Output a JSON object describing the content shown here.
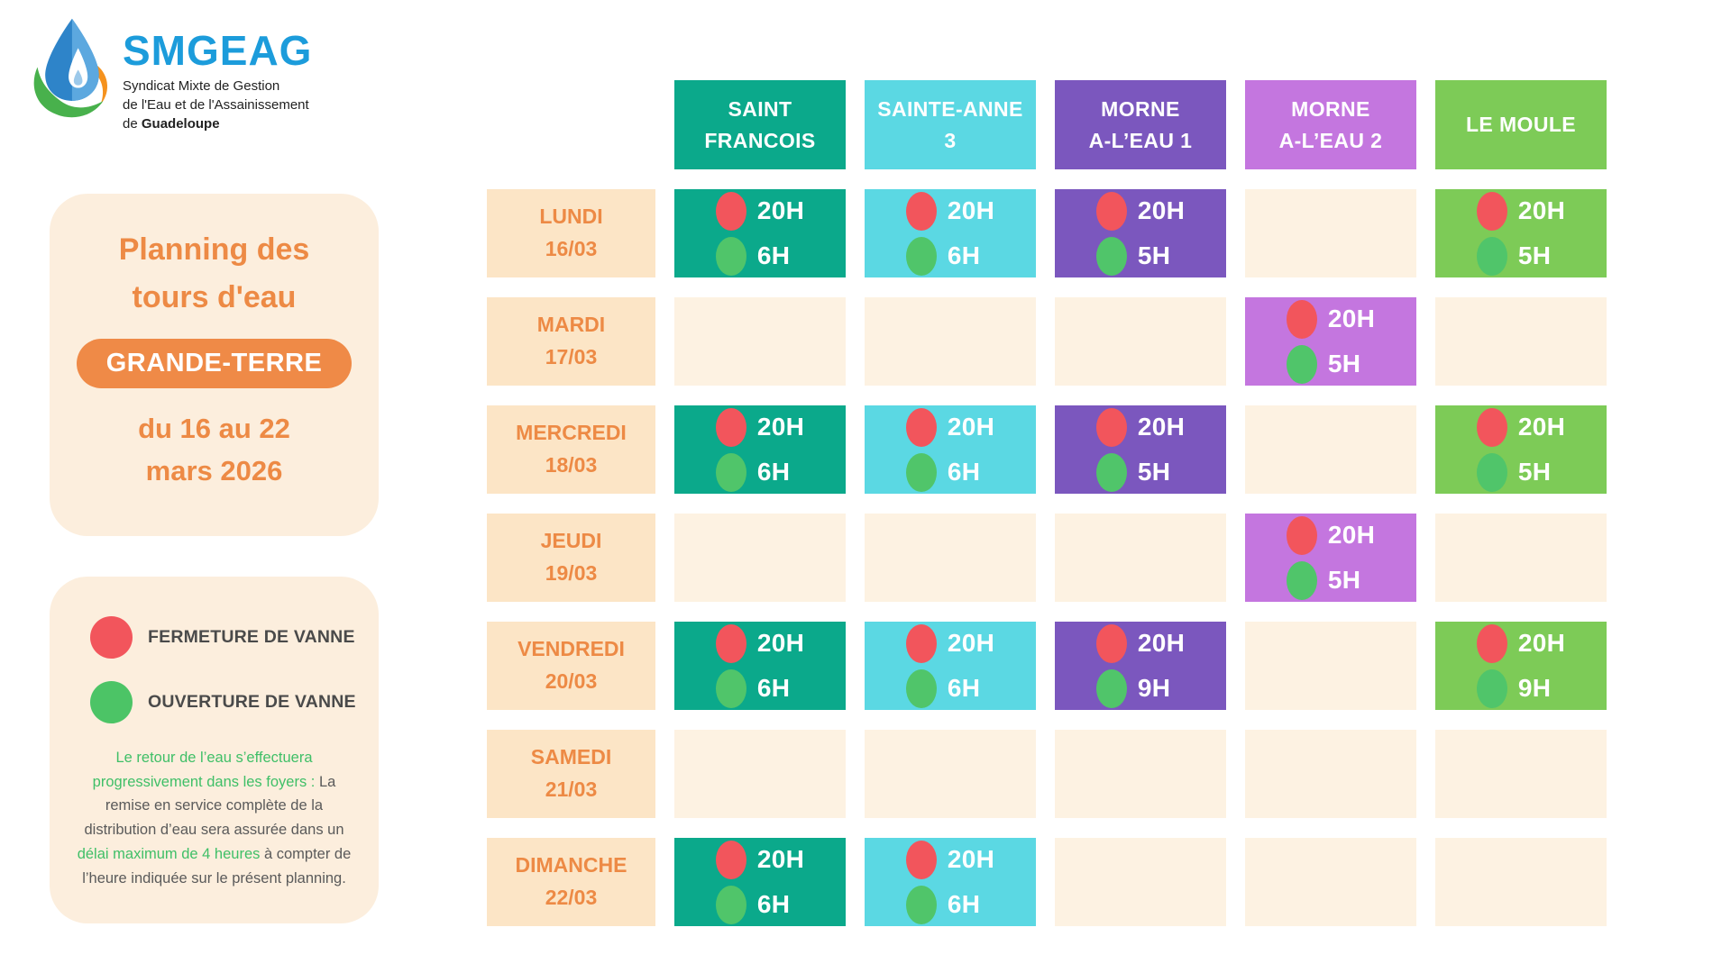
{
  "logo": {
    "brand": "SMGEAG",
    "subtitle_lines": [
      "Syndicat Mixte de Gestion",
      "de l'Eau et de l'Assainissement"
    ],
    "subtitle_line3_prefix": "de ",
    "subtitle_line3_bold": "Guadeloupe"
  },
  "title_card": {
    "title_lines": [
      "Planning des",
      "tours d'eau"
    ],
    "badge": "GRANDE-TERRE",
    "date_lines": [
      "du 16 au 22",
      "mars 2026"
    ]
  },
  "legend_card": {
    "items": [
      {
        "id": "fermeture",
        "dot_color": "#F2555C",
        "label": "FERMETURE DE VANNE"
      },
      {
        "id": "ouverture",
        "dot_color": "#4CC466",
        "label": "OUVERTURE DE VANNE"
      }
    ],
    "note_segments": [
      {
        "tone": "green",
        "text": "Le retour de l’eau s’effectuera progressivement dans les foyers :"
      },
      {
        "tone": "dark",
        "text": " La remise en service complète de la distribution d’eau sera assurée dans un "
      },
      {
        "tone": "green",
        "text": "délai maximum de 4 heures"
      },
      {
        "tone": "dark",
        "text": " à compter de l’heure indiquée sur le présent planning."
      }
    ]
  },
  "schedule": {
    "columns": [
      {
        "id": "saint-francois",
        "label_lines": [
          "SAINT",
          "FRANCOIS"
        ],
        "color": "#0BA98B"
      },
      {
        "id": "sainte-anne-3",
        "label_lines": [
          "SAINTE-ANNE",
          "3"
        ],
        "color": "#5BD8E3"
      },
      {
        "id": "morne-a-l-eau-1",
        "label_lines": [
          "MORNE",
          "A-L’EAU 1"
        ],
        "color": "#7B57BE"
      },
      {
        "id": "morne-a-l-eau-2",
        "label_lines": [
          "MORNE",
          "A-L’EAU 2"
        ],
        "color": "#C476DF"
      },
      {
        "id": "le-moule",
        "label_lines": [
          "LE MOULE"
        ],
        "color": "#7DCB57"
      }
    ],
    "days": [
      {
        "id": "lundi",
        "name": "LUNDI",
        "date": "16/03"
      },
      {
        "id": "mardi",
        "name": "MARDI",
        "date": "17/03"
      },
      {
        "id": "mercredi",
        "name": "MERCREDI",
        "date": "18/03"
      },
      {
        "id": "jeudi",
        "name": "JEUDI",
        "date": "19/03"
      },
      {
        "id": "vendredi",
        "name": "VENDREDI",
        "date": "20/03"
      },
      {
        "id": "samedi",
        "name": "SAMEDI",
        "date": "21/03"
      },
      {
        "id": "dimanche",
        "name": "DIMANCHE",
        "date": "22/03"
      }
    ],
    "cells": [
      [
        {
          "close": "20H",
          "open": "6H"
        },
        {
          "close": "20H",
          "open": "6H"
        },
        {
          "close": "20H",
          "open": "5H"
        },
        null,
        {
          "close": "20H",
          "open": "5H"
        }
      ],
      [
        null,
        null,
        null,
        {
          "close": "20H",
          "open": "5H"
        },
        null
      ],
      [
        {
          "close": "20H",
          "open": "6H"
        },
        {
          "close": "20H",
          "open": "6H"
        },
        {
          "close": "20H",
          "open": "5H"
        },
        null,
        {
          "close": "20H",
          "open": "5H"
        }
      ],
      [
        null,
        null,
        null,
        {
          "close": "20H",
          "open": "5H"
        },
        null
      ],
      [
        {
          "close": "20H",
          "open": "6H"
        },
        {
          "close": "20H",
          "open": "6H"
        },
        {
          "close": "20H",
          "open": "9H"
        },
        null,
        {
          "close": "20H",
          "open": "9H"
        }
      ],
      [
        null,
        null,
        null,
        null,
        null
      ],
      [
        {
          "close": "20H",
          "open": "6H"
        },
        {
          "close": "20H",
          "open": "6H"
        },
        null,
        null,
        null
      ]
    ]
  },
  "colors": {
    "close_dot": "#F2555C",
    "open_dot": "#50C56A",
    "day_cell_bg": "#FCE5C6",
    "empty_cell_bg": "#FDF2E2",
    "card_bg": "#FCEEDD",
    "accent_orange": "#ED8A45",
    "badge_bg": "#EF8A47",
    "brand_blue": "#1C9CDB",
    "legend_text": "#4A4A4A",
    "note_green": "#3FBF67",
    "note_dark": "#5A5A5A"
  }
}
